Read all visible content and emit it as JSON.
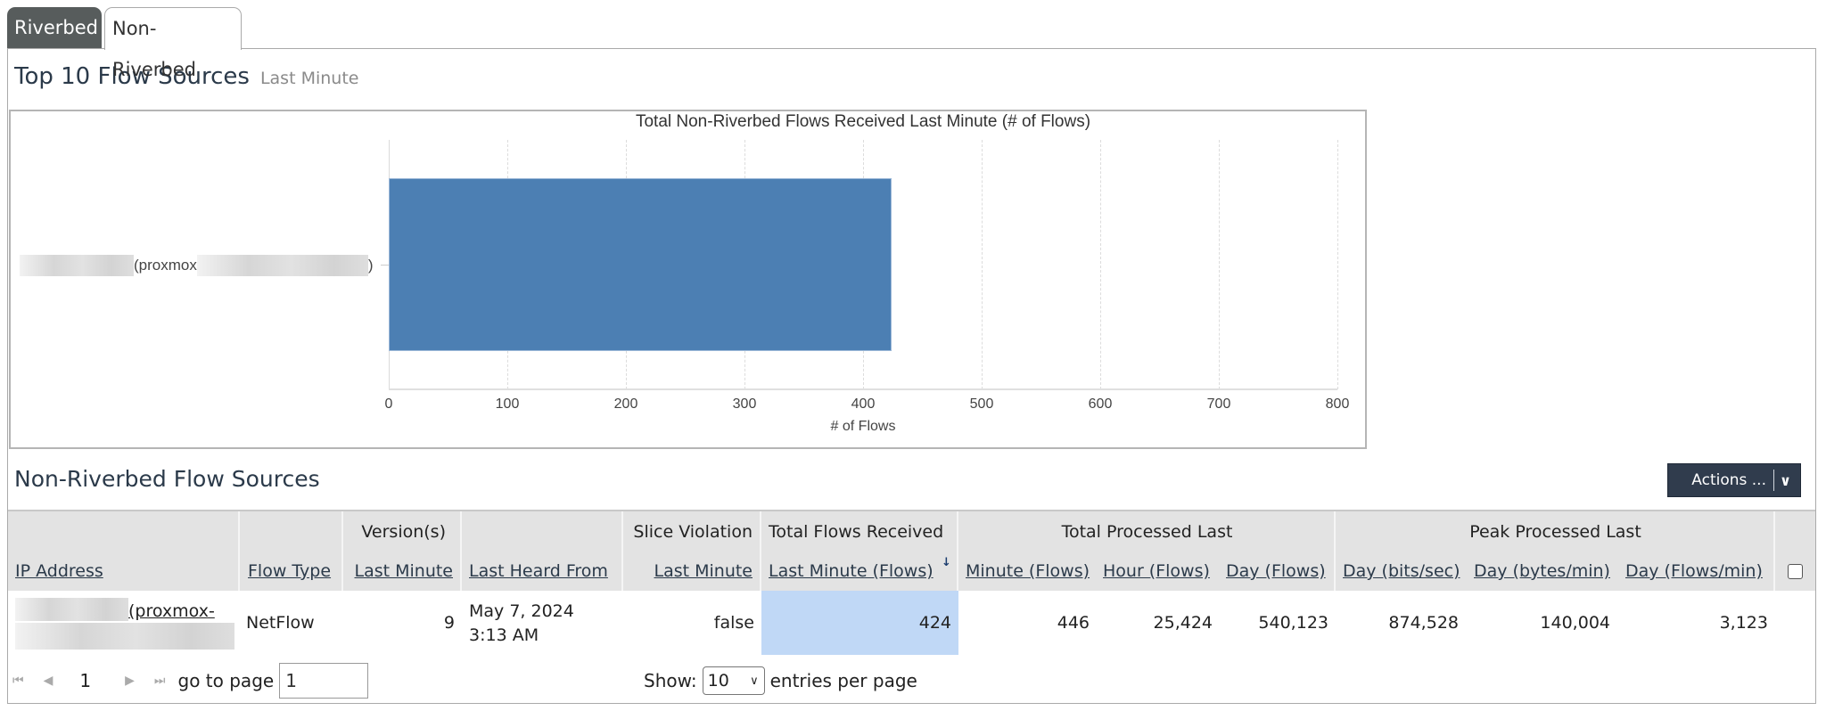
{
  "tabs": [
    {
      "label": "Riverbed",
      "active": false
    },
    {
      "label": "Non-Riverbed",
      "active": true
    }
  ],
  "top_section": {
    "title": "Top 10 Flow Sources",
    "subtitle": "Last Minute"
  },
  "chart_data": {
    "type": "bar",
    "orientation": "horizontal",
    "title": "Total Non-Riverbed Flows Received Last Minute (# of Flows)",
    "categories": [
      "(proxmox)"
    ],
    "values": [
      424
    ],
    "xlabel": "# of Flows",
    "ylabel": "",
    "xlim": [
      0,
      800
    ],
    "xticks": [
      "0",
      "100",
      "200",
      "300",
      "400",
      "500",
      "600",
      "700",
      "800"
    ],
    "grid": true,
    "legend": "none",
    "bar_color": "#4c7fb3"
  },
  "chart_label": {
    "prefix": "(proxmox",
    "suffix": ")"
  },
  "sources_section": {
    "title": "Non-Riverbed Flow Sources",
    "actions_label": "Actions ...",
    "actions_icon": "chevron-down-icon"
  },
  "table": {
    "group_headers": {
      "version": "Version(s)",
      "slice": "Slice Violation",
      "total_received": "Total Flows Received",
      "total_processed": "Total Processed Last",
      "peak_processed": "Peak Processed Last"
    },
    "columns": {
      "ip": "IP Address",
      "flow_type": "Flow Type",
      "version": "Last Minute",
      "last_heard": "Last Heard From",
      "slice": "Last Minute",
      "received": "Last Minute (Flows)",
      "proc_minute": "Minute (Flows)",
      "proc_hour": "Hour (Flows)",
      "proc_day": "Day (Flows)",
      "peak_bits": "Day (bits/sec)",
      "peak_bytes": "Day (bytes/min)",
      "peak_flows": "Day (Flows/min)"
    },
    "rows": [
      {
        "ip_link": "(proxmox-",
        "flow_type": "NetFlow",
        "version": "9",
        "last_heard_date": "May 7, 2024",
        "last_heard_time": "3:13 AM",
        "slice": "false",
        "received": "424",
        "proc_minute": "446",
        "proc_hour": "25,424",
        "proc_day": "540,123",
        "peak_bits": "874,528",
        "peak_bytes": "140,004",
        "peak_flows": "3,123"
      }
    ]
  },
  "pager": {
    "current_page": "1",
    "goto_label": "go to page",
    "goto_value": "1",
    "show_label": "Show:",
    "page_size": "10",
    "entries_label": "entries per page"
  },
  "colors": {
    "tab_inactive": "#575c5c",
    "header_bg": "#e3e3e3",
    "highlight_cell": "#c0d8f6",
    "actions_bg": "#303c4d",
    "bar": "#4c7fb3"
  }
}
